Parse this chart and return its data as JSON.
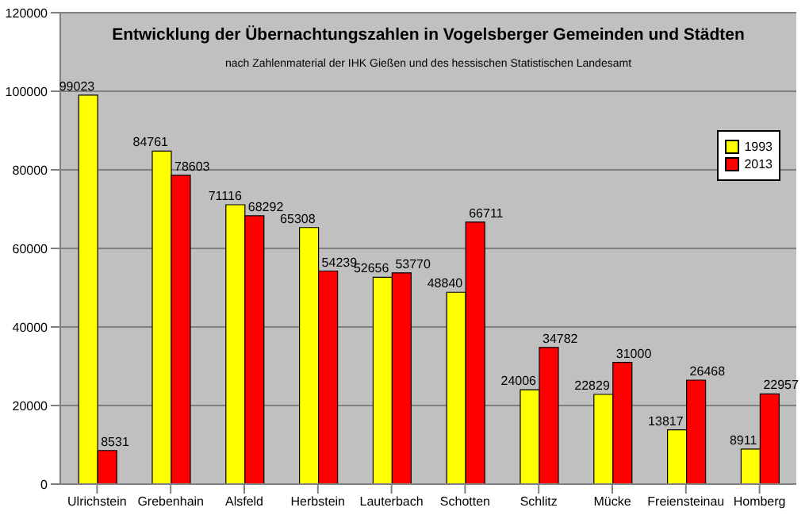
{
  "chart_data": {
    "type": "bar",
    "title": "Entwicklung der Übernachtungszahlen in Vogelsberger Gemeinden und Städten",
    "subtitle": "nach Zahlenmaterial der IHK Gießen und des hessischen Statistischen Landesamt",
    "categories": [
      "Ulrichstein",
      "Grebenhain",
      "Alsfeld",
      "Herbstein",
      "Lauterbach",
      "Schotten",
      "Schlitz",
      "Mücke",
      "Freiensteinau",
      "Homberg"
    ],
    "series": [
      {
        "name": "1993",
        "color": "#ffff00",
        "values": [
          99023,
          84761,
          71116,
          65308,
          52656,
          48840,
          24006,
          22829,
          13817,
          8911
        ]
      },
      {
        "name": "2013",
        "color": "#ff0000",
        "values": [
          8531,
          78603,
          68292,
          54239,
          53770,
          66711,
          34782,
          31000,
          26468,
          22957
        ]
      }
    ],
    "ylim": [
      0,
      120000
    ],
    "yticks": [
      0,
      20000,
      40000,
      60000,
      80000,
      100000,
      120000
    ],
    "grid": "y",
    "legend": "right",
    "data_labels": true
  }
}
